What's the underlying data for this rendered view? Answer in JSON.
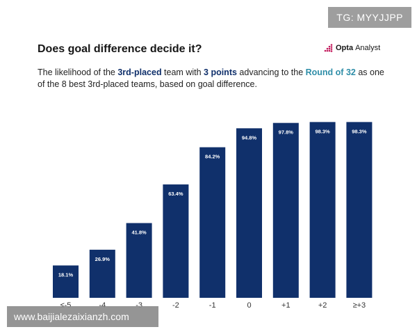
{
  "overlay": {
    "tg_badge": "TG: MYYJJPP",
    "watermark": "www.baijialezaixianzh.com"
  },
  "header": {
    "title": "Does goal difference decide it?",
    "brand_opta": "Opta",
    "brand_analyst": "Analyst",
    "subtitle_p1": "The likelihood of the ",
    "subtitle_hl1": "3rd-placed",
    "subtitle_p2": " team with ",
    "subtitle_hl2": "3 points",
    "subtitle_p3": " advancing to the ",
    "subtitle_hl3": "Round of 32",
    "subtitle_p4": " as one of the 8 best 3rd-placed teams, based on goal difference."
  },
  "colors": {
    "bar": "#10306b",
    "highlight_blue": "#10306b",
    "highlight_teal": "#2f8ea8",
    "brand_dots": "#c2185b"
  },
  "chart_data": {
    "type": "bar",
    "categories": [
      "≤-5",
      "-4",
      "-3",
      "-2",
      "-1",
      "0",
      "+1",
      "+2",
      "≥+3"
    ],
    "values": [
      18.1,
      26.9,
      41.8,
      63.4,
      84.2,
      94.8,
      97.8,
      98.3,
      98.3
    ],
    "value_labels": [
      "18.1%",
      "26.9%",
      "41.8%",
      "63.4%",
      "84.2%",
      "94.8%",
      "97.8%",
      "98.3%",
      "98.3%"
    ],
    "title": "",
    "xlabel": "",
    "ylabel": "",
    "ylim": [
      0,
      100
    ],
    "grid": false,
    "legend": "none"
  }
}
